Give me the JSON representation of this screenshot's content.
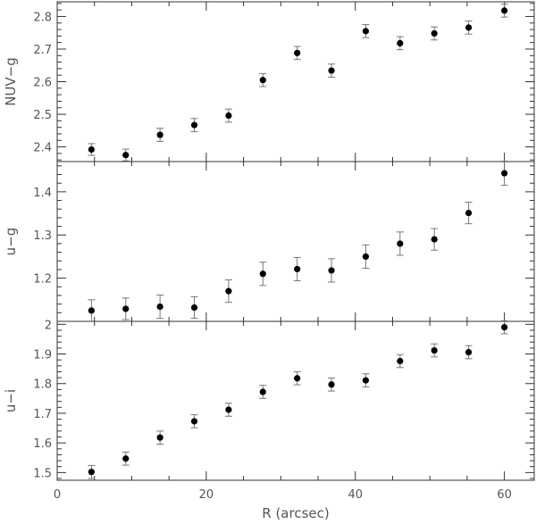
{
  "chart_data": {
    "type": "scatter",
    "x_axis": {
      "label": "R (arcsec)",
      "range": [
        0,
        64
      ],
      "ticks": [
        "0",
        "20",
        "40",
        "60"
      ],
      "tick_values": [
        0,
        20,
        40,
        60
      ],
      "minor_step": 5
    },
    "x": [
      4.6,
      9.2,
      13.8,
      18.4,
      23.0,
      27.6,
      32.2,
      36.8,
      41.4,
      46.0,
      50.6,
      55.2,
      60.0
    ],
    "panels": [
      {
        "ylabel": "NUV−g",
        "ylim": [
          2.355,
          2.845
        ],
        "ticks": [
          "2.4",
          "2.5",
          "2.6",
          "2.7",
          "2.8"
        ],
        "tick_values": [
          2.4,
          2.5,
          2.6,
          2.7,
          2.8
        ],
        "minor_step": 0.02,
        "values": [
          2.392,
          2.375,
          2.437,
          2.467,
          2.496,
          2.605,
          2.688,
          2.634,
          2.755,
          2.718,
          2.748,
          2.766,
          2.818
        ],
        "errors": [
          0.018,
          0.018,
          0.02,
          0.02,
          0.02,
          0.02,
          0.02,
          0.02,
          0.02,
          0.02,
          0.02,
          0.02,
          0.02
        ]
      },
      {
        "ylabel": "u−g",
        "ylim": [
          1.1,
          1.47
        ],
        "ticks": [
          "1.2",
          "1.3",
          "1.4"
        ],
        "tick_values": [
          1.2,
          1.3,
          1.4
        ],
        "minor_step": 0.02,
        "values": [
          1.125,
          1.129,
          1.134,
          1.132,
          1.17,
          1.21,
          1.221,
          1.218,
          1.25,
          1.28,
          1.29,
          1.351,
          1.443
        ],
        "errors": [
          0.025,
          0.025,
          0.027,
          0.025,
          0.026,
          0.027,
          0.027,
          0.027,
          0.027,
          0.027,
          0.025,
          0.025,
          0.028
        ]
      },
      {
        "ylabel": "u−i",
        "ylim": [
          1.474,
          2.01
        ],
        "ticks": [
          "1.5",
          "1.6",
          "1.7",
          "1.8",
          "1.9",
          "2"
        ],
        "tick_values": [
          1.5,
          1.6,
          1.7,
          1.8,
          1.9,
          2.0
        ],
        "minor_step": 0.02,
        "values": [
          1.502,
          1.547,
          1.618,
          1.673,
          1.712,
          1.772,
          1.818,
          1.797,
          1.811,
          1.876,
          1.912,
          1.906,
          1.99
        ],
        "errors": [
          0.022,
          0.022,
          0.022,
          0.022,
          0.022,
          0.022,
          0.022,
          0.022,
          0.022,
          0.022,
          0.022,
          0.022,
          0.022
        ]
      }
    ]
  }
}
